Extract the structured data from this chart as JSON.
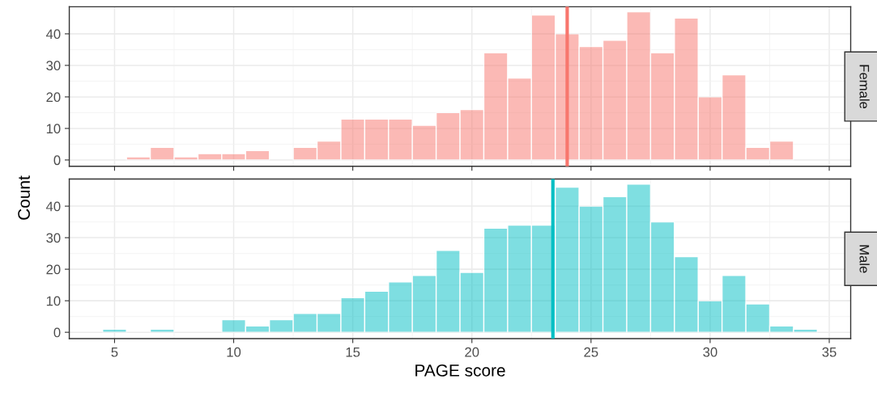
{
  "chart_data": [
    {
      "type": "histogram",
      "annotations": [
        "Female"
      ],
      "ylabel": "Count",
      "color": "#f8766d",
      "bins": [
        5.5,
        6.5,
        7.5,
        8.5,
        9.5,
        10.5,
        11.5,
        12.5,
        13.5,
        14.5,
        15.5,
        16.5,
        17.5,
        18.5,
        19.5,
        20.5,
        21.5,
        22.5,
        23.5,
        24.5,
        25.5,
        26.5,
        27.5,
        28.5,
        29.5,
        30.5,
        31.5,
        32.5,
        33.5
      ],
      "values": [
        1,
        4,
        1,
        2,
        2,
        3,
        0,
        4,
        6,
        13,
        13,
        13,
        11,
        15,
        16,
        34,
        26,
        46,
        40,
        36,
        38,
        47,
        34,
        45,
        20,
        27,
        4,
        6
      ],
      "ref_lines": [
        {
          "axis": "x",
          "value": 24.0,
          "color": "#f8766d"
        }
      ],
      "xlim": [
        3.1,
        35.9
      ],
      "xticks": [
        5,
        10,
        15,
        20,
        25,
        30,
        35
      ],
      "ylim": [
        -2,
        48.6
      ],
      "yticks": [
        0,
        10,
        20,
        30,
        40
      ],
      "grid": true,
      "tick_labels": "y"
    },
    {
      "type": "histogram",
      "annotations": [
        "Male"
      ],
      "xlabel": "PAGE score",
      "color": "#00bfc4",
      "bins": [
        4.5,
        5.5,
        6.5,
        7.5,
        8.5,
        9.5,
        10.5,
        11.5,
        12.5,
        13.5,
        14.5,
        15.5,
        16.5,
        17.5,
        18.5,
        19.5,
        20.5,
        21.5,
        22.5,
        23.5,
        24.5,
        25.5,
        26.5,
        27.5,
        28.5,
        29.5,
        30.5,
        31.5,
        32.5,
        33.5,
        34.5
      ],
      "values": [
        1,
        0,
        1,
        0,
        0,
        4,
        2,
        4,
        6,
        6,
        11,
        13,
        16,
        18,
        26,
        19,
        33,
        34,
        34,
        46,
        40,
        43,
        47,
        35,
        24,
        10,
        18,
        9,
        2,
        1
      ],
      "ref_lines": [
        {
          "axis": "x",
          "value": 23.4,
          "color": "#00bfc4"
        }
      ],
      "xlim": [
        3.1,
        35.9
      ],
      "xticks": [
        5,
        10,
        15,
        20,
        25,
        30,
        35
      ],
      "ylim": [
        -2,
        48.6
      ],
      "yticks": [
        0,
        10,
        20,
        30,
        40
      ],
      "grid": true
    }
  ]
}
